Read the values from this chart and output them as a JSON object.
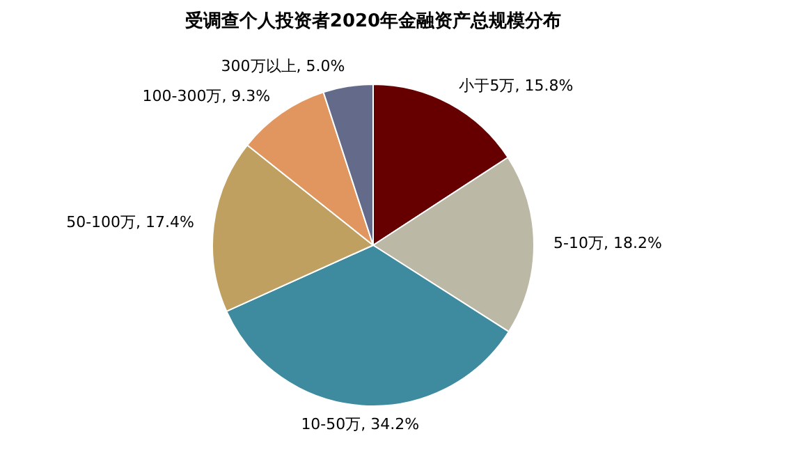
{
  "chart_data": {
    "type": "pie",
    "title": "受调查个人投资者2020年金融资产总规模分布",
    "categories": [
      "小于5万",
      "5-10万",
      "10-50万",
      "50-100万",
      "100-300万",
      "300万以上"
    ],
    "values": [
      15.8,
      18.2,
      34.2,
      17.4,
      9.3,
      5.0
    ],
    "value_labels": [
      "15.8%",
      "18.2%",
      "34.2%",
      "17.4%",
      "9.3%",
      "5.0%"
    ],
    "colors": [
      "#660000",
      "#bcb8a6",
      "#3e8a9e",
      "#c0a060",
      "#e0965e",
      "#636a8a"
    ],
    "legend": false
  }
}
